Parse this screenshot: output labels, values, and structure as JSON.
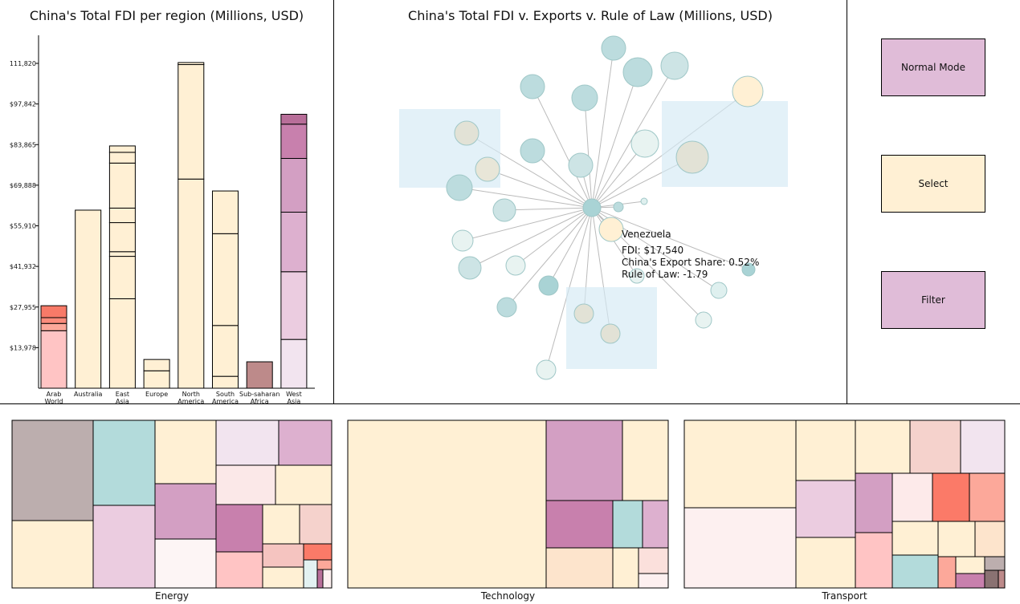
{
  "bar_chart": {
    "title": "China's Total FDI per region (Millions, USD)",
    "y_ticks": [
      "$13,978",
      "$27,955",
      "$41,932",
      "$55,910",
      "$69,888",
      "$83,865",
      "$97,842",
      "111,820"
    ]
  },
  "network": {
    "title": "China's Total FDI v. Exports v. Rule of Law (Millions, USD)",
    "tooltip": {
      "name": "Venezuela",
      "fdi": "FDI: $17,540",
      "export_share": "China's Export Share: 0.52%",
      "rule_of_law": "Rule of Law: -1.79"
    }
  },
  "controls": {
    "normal_mode": "Normal Mode",
    "select": "Select",
    "filter": "Filter"
  },
  "treemaps": {
    "energy_label": "Energy",
    "technology_label": "Technology",
    "transport_label": "Transport"
  },
  "chart_data": [
    {
      "type": "bar",
      "title": "China's Total FDI per region (Millions, USD)",
      "categories": [
        {
          "label": [
            "Arab",
            "World"
          ],
          "segments": [
            {
              "value": 19800,
              "color": "#ffc4c4"
            },
            {
              "value": 2500,
              "color": "#fca89a"
            },
            {
              "value": 2000,
              "color": "#fb8c7c"
            },
            {
              "value": 4100,
              "color": "#f87a68"
            }
          ]
        },
        {
          "label": [
            "Australia"
          ],
          "segments": [
            {
              "value": 61300,
              "color": "#fff0d4"
            }
          ]
        },
        {
          "label": [
            "East",
            "Asia"
          ],
          "segments": [
            {
              "value": 30800,
              "color": "#fff0d4"
            },
            {
              "value": 14600,
              "color": "#fff0d4"
            },
            {
              "value": 1600,
              "color": "#fff0d4"
            },
            {
              "value": 10000,
              "color": "#fff0d4"
            },
            {
              "value": 5000,
              "color": "#fff0d4"
            },
            {
              "value": 15500,
              "color": "#fff0d4"
            },
            {
              "value": 3700,
              "color": "#fff0d4"
            },
            {
              "value": 2200,
              "color": "#fff0d4"
            }
          ]
        },
        {
          "label": [
            "Europe"
          ],
          "segments": [
            {
              "value": 6000,
              "color": "#fff0d4"
            },
            {
              "value": 3900,
              "color": "#fff0d4"
            }
          ]
        },
        {
          "label": [
            "North",
            "America"
          ],
          "segments": [
            {
              "value": 72000,
              "color": "#fff0d4"
            },
            {
              "value": 39400,
              "color": "#fff0d4"
            },
            {
              "value": 700,
              "color": "#fff0d4"
            }
          ]
        },
        {
          "label": [
            "South",
            "America"
          ],
          "segments": [
            {
              "value": 4100,
              "color": "#fff0d4"
            },
            {
              "value": 17500,
              "color": "#fff0d4"
            },
            {
              "value": 31600,
              "color": "#fff0d4"
            },
            {
              "value": 14700,
              "color": "#fff0d4"
            }
          ]
        },
        {
          "label": [
            "Sub-saharan",
            "Africa"
          ],
          "segments": [
            {
              "value": 9100,
              "color": "#bd8a8a"
            }
          ]
        },
        {
          "label": [
            "West",
            "Asia"
          ],
          "segments": [
            {
              "value": 16800,
              "color": "#f2e4ef"
            },
            {
              "value": 23300,
              "color": "#ebcce0"
            },
            {
              "value": 20500,
              "color": "#ddb0cf"
            },
            {
              "value": 18500,
              "color": "#d39fc3"
            },
            {
              "value": 11800,
              "color": "#c880ad"
            },
            {
              "value": 3400,
              "color": "#b86e99"
            }
          ]
        }
      ],
      "ylim": [
        0,
        111820
      ]
    },
    {
      "type": "scatter",
      "title": "China's Total FDI v. Exports v. Rule of Law (Millions, USD)"
    },
    {
      "type": "treemap",
      "title": "Energy"
    },
    {
      "type": "treemap",
      "title": "Technology"
    },
    {
      "type": "treemap",
      "title": "Transport"
    }
  ]
}
